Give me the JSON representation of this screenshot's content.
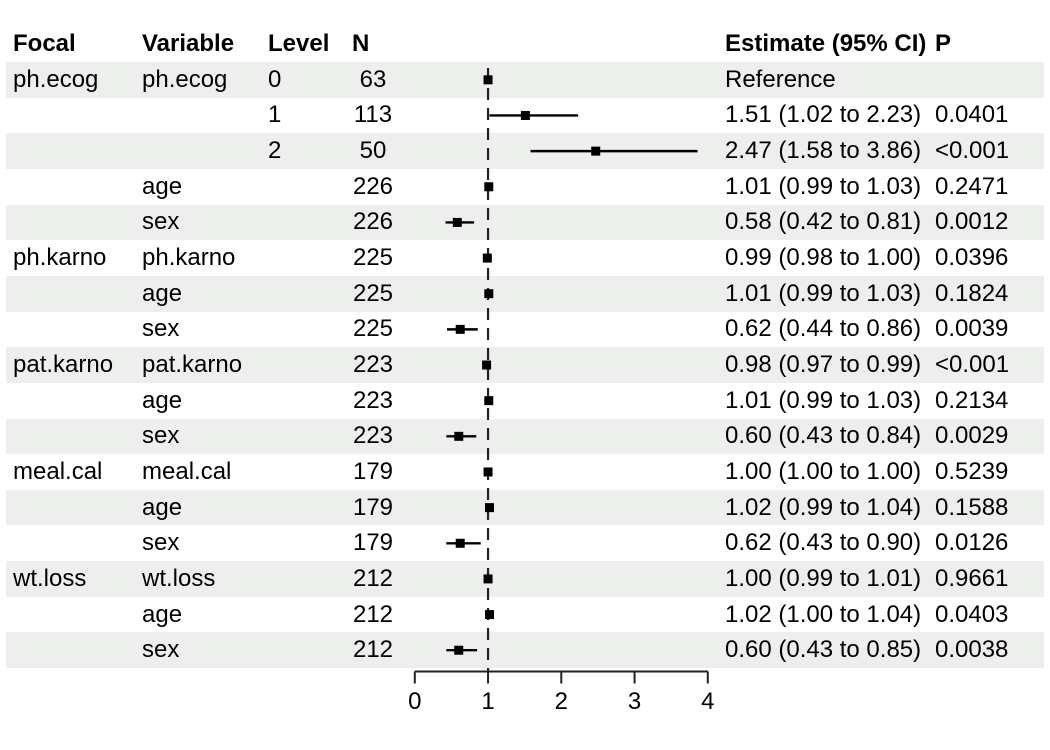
{
  "header": {
    "focal": "Focal",
    "variable": "Variable",
    "level": "Level",
    "n": "N",
    "estimate": "Estimate (95% CI)",
    "p": "P"
  },
  "colors": {
    "stripe": "#edefed",
    "text": "#000000",
    "marker": "#000000",
    "axis": "#222222",
    "reference_line": "#222222"
  },
  "chart_data": {
    "type": "forest",
    "title": "",
    "xlabel": "",
    "xlim": [
      0,
      4
    ],
    "ticks": [
      "0",
      "1",
      "2",
      "3",
      "4"
    ],
    "reference_value": 1,
    "legend": "none",
    "rows": [
      {
        "focal": "ph.ecog",
        "variable": "ph.ecog",
        "level": "0",
        "n": "63",
        "estimate_text": "Reference",
        "p": "",
        "est": 1.0,
        "lo": null,
        "hi": null,
        "reference": true
      },
      {
        "focal": "",
        "variable": "",
        "level": "1",
        "n": "113",
        "estimate_text": "1.51 (1.02 to 2.23)",
        "p": "0.0401",
        "est": 1.51,
        "lo": 1.02,
        "hi": 2.23
      },
      {
        "focal": "",
        "variable": "",
        "level": "2",
        "n": "50",
        "estimate_text": "2.47 (1.58 to 3.86)",
        "p": "<0.001",
        "est": 2.47,
        "lo": 1.58,
        "hi": 3.86
      },
      {
        "focal": "",
        "variable": "age",
        "level": "",
        "n": "226",
        "estimate_text": "1.01 (0.99 to 1.03)",
        "p": "0.2471",
        "est": 1.01,
        "lo": 0.99,
        "hi": 1.03
      },
      {
        "focal": "",
        "variable": "sex",
        "level": "",
        "n": "226",
        "estimate_text": "0.58 (0.42 to 0.81)",
        "p": "0.0012",
        "est": 0.58,
        "lo": 0.42,
        "hi": 0.81
      },
      {
        "focal": "ph.karno",
        "variable": "ph.karno",
        "level": "",
        "n": "225",
        "estimate_text": "0.99 (0.98 to 1.00)",
        "p": "0.0396",
        "est": 0.99,
        "lo": 0.98,
        "hi": 1.0
      },
      {
        "focal": "",
        "variable": "age",
        "level": "",
        "n": "225",
        "estimate_text": "1.01 (0.99 to 1.03)",
        "p": "0.1824",
        "est": 1.01,
        "lo": 0.99,
        "hi": 1.03
      },
      {
        "focal": "",
        "variable": "sex",
        "level": "",
        "n": "225",
        "estimate_text": "0.62 (0.44 to 0.86)",
        "p": "0.0039",
        "est": 0.62,
        "lo": 0.44,
        "hi": 0.86
      },
      {
        "focal": "pat.karno",
        "variable": "pat.karno",
        "level": "",
        "n": "223",
        "estimate_text": "0.98 (0.97 to 0.99)",
        "p": "<0.001",
        "est": 0.98,
        "lo": 0.97,
        "hi": 0.99
      },
      {
        "focal": "",
        "variable": "age",
        "level": "",
        "n": "223",
        "estimate_text": "1.01 (0.99 to 1.03)",
        "p": "0.2134",
        "est": 1.01,
        "lo": 0.99,
        "hi": 1.03
      },
      {
        "focal": "",
        "variable": "sex",
        "level": "",
        "n": "223",
        "estimate_text": "0.60 (0.43 to 0.84)",
        "p": "0.0029",
        "est": 0.6,
        "lo": 0.43,
        "hi": 0.84
      },
      {
        "focal": "meal.cal",
        "variable": "meal.cal",
        "level": "",
        "n": "179",
        "estimate_text": "1.00 (1.00 to 1.00)",
        "p": "0.5239",
        "est": 1.0,
        "lo": 1.0,
        "hi": 1.0
      },
      {
        "focal": "",
        "variable": "age",
        "level": "",
        "n": "179",
        "estimate_text": "1.02 (0.99 to 1.04)",
        "p": "0.1588",
        "est": 1.02,
        "lo": 0.99,
        "hi": 1.04
      },
      {
        "focal": "",
        "variable": "sex",
        "level": "",
        "n": "179",
        "estimate_text": "0.62 (0.43 to 0.90)",
        "p": "0.0126",
        "est": 0.62,
        "lo": 0.43,
        "hi": 0.9
      },
      {
        "focal": "wt.loss",
        "variable": "wt.loss",
        "level": "",
        "n": "212",
        "estimate_text": "1.00 (0.99 to 1.01)",
        "p": "0.9661",
        "est": 1.0,
        "lo": 0.99,
        "hi": 1.01
      },
      {
        "focal": "",
        "variable": "age",
        "level": "",
        "n": "212",
        "estimate_text": "1.02 (1.00 to 1.04)",
        "p": "0.0403",
        "est": 1.02,
        "lo": 1.0,
        "hi": 1.04
      },
      {
        "focal": "",
        "variable": "sex",
        "level": "",
        "n": "212",
        "estimate_text": "0.60 (0.43 to 0.85)",
        "p": "0.0038",
        "est": 0.6,
        "lo": 0.43,
        "hi": 0.85
      }
    ]
  }
}
